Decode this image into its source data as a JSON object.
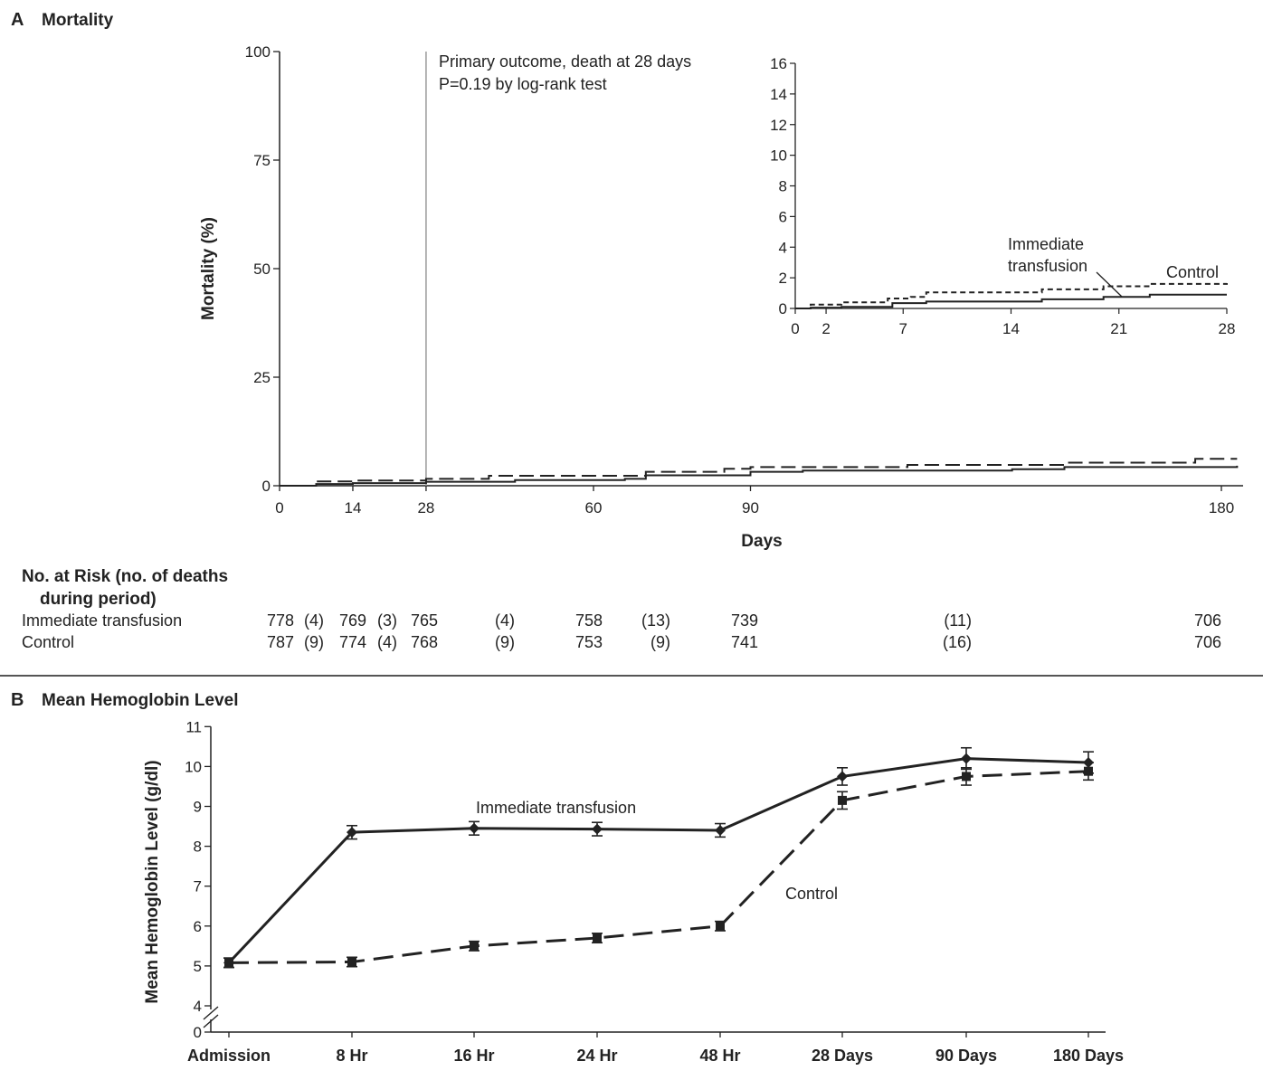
{
  "panel_a": {
    "letter": "A",
    "title": "Mortality",
    "ylabel": "Mortality (%)",
    "xlabel": "Days",
    "annotation_line1": "Primary outcome, death at 28 days",
    "annotation_line2": "P=0.19 by log-rank test",
    "risk_table": {
      "header_line1": "No. at Risk (no. of deaths",
      "header_line2": "during period)",
      "rows": [
        {
          "label": "Immediate transfusion",
          "cells": [
            "778",
            "(4)",
            "769",
            "(3)",
            "765",
            "(4)",
            "758",
            "(13)",
            "739",
            "(11)",
            "706"
          ]
        },
        {
          "label": "Control",
          "cells": [
            "787",
            "(9)",
            "774",
            "(4)",
            "768",
            "(9)",
            "753",
            "(9)",
            "741",
            "(16)",
            "706"
          ]
        }
      ]
    }
  },
  "panel_b": {
    "letter": "B",
    "title": "Mean Hemoglobin Level",
    "ylabel": "Mean Hemoglobin Level (g/dl)",
    "label_immediate": "Immediate transfusion",
    "label_control": "Control"
  },
  "chart_data": [
    {
      "type": "line",
      "title": "Mortality",
      "xlabel": "Days",
      "ylabel": "Mortality (%)",
      "xlim": [
        0,
        180
      ],
      "ylim": [
        0,
        100
      ],
      "x_ticks": [
        0,
        14,
        28,
        60,
        90,
        180
      ],
      "y_ticks": [
        0,
        25,
        50,
        75,
        100
      ],
      "reference_line_x": 28,
      "series": [
        {
          "style": "solid",
          "x": [
            0,
            7,
            14,
            28,
            45,
            66,
            70,
            90,
            100,
            140,
            150,
            183
          ],
          "y": [
            0,
            0.4,
            0.6,
            0.9,
            1.3,
            1.6,
            2.4,
            3.2,
            3.5,
            3.8,
            4.3,
            4.6
          ]
        },
        {
          "style": "dashed",
          "x": [
            0,
            7,
            14,
            28,
            40,
            70,
            85,
            90,
            120,
            150,
            175,
            183
          ],
          "y": [
            0,
            1.0,
            1.2,
            1.6,
            2.3,
            3.2,
            3.9,
            4.3,
            4.8,
            5.3,
            6.2,
            6.2
          ]
        }
      ],
      "inset": {
        "xlim": [
          0,
          28
        ],
        "ylim": [
          0,
          16
        ],
        "x_ticks": [
          0,
          2,
          7,
          14,
          21,
          28
        ],
        "y_ticks": [
          0,
          2,
          4,
          6,
          8,
          10,
          12,
          14,
          16
        ],
        "label_immediate": "Immediate\ntransfusion",
        "label_control": "Control",
        "series": [
          {
            "name": "Immediate transfusion",
            "style": "solid",
            "x": [
              0,
              1,
              3,
              6.3,
              8.5,
              16,
              20,
              23,
              28
            ],
            "y": [
              0,
              0.05,
              0.1,
              0.35,
              0.45,
              0.6,
              0.75,
              0.9,
              0.9
            ]
          },
          {
            "name": "Control",
            "style": "dashed",
            "x": [
              0,
              1,
              3,
              6,
              7.5,
              8.5,
              16,
              20,
              23,
              28
            ],
            "y": [
              0,
              0.25,
              0.4,
              0.65,
              0.75,
              1.05,
              1.25,
              1.45,
              1.6,
              1.65
            ]
          }
        ]
      }
    },
    {
      "type": "line",
      "title": "Mean Hemoglobin Level",
      "ylabel": "Mean Hemoglobin Level (g/dl)",
      "categories": [
        "Admission",
        "8 Hr",
        "16 Hr",
        "24 Hr",
        "48 Hr",
        "28 Days",
        "90 Days",
        "180 Days"
      ],
      "y_ticks": [
        "0",
        "4",
        "5",
        "6",
        "7",
        "8",
        "9",
        "10",
        "11"
      ],
      "ylim": [
        4,
        11
      ],
      "axis_break": true,
      "series": [
        {
          "name": "Immediate transfusion",
          "style": "solid",
          "marker": "diamond",
          "values": [
            5.08,
            8.35,
            8.45,
            8.43,
            8.4,
            9.75,
            10.2,
            10.1
          ],
          "error": [
            0.05,
            0.1,
            0.1,
            0.1,
            0.1,
            0.15,
            0.2,
            0.2
          ]
        },
        {
          "name": "Control",
          "style": "dashed",
          "marker": "square",
          "values": [
            5.08,
            5.1,
            5.5,
            5.7,
            6.0,
            9.15,
            9.75,
            9.88
          ],
          "error": [
            0.05,
            0.05,
            0.05,
            0.05,
            0.05,
            0.15,
            0.15,
            0.15
          ]
        }
      ]
    }
  ]
}
